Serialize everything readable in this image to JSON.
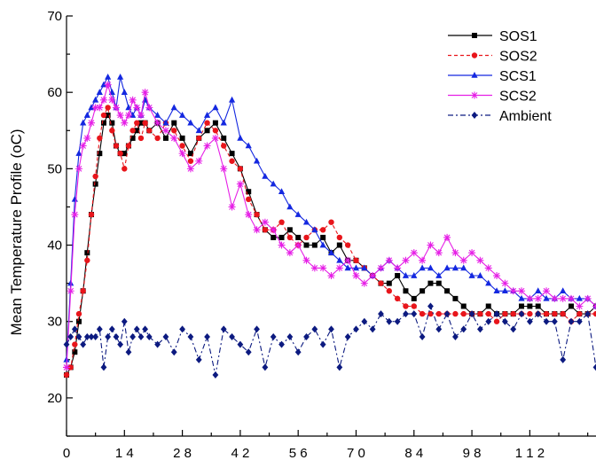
{
  "chart_data": {
    "type": "line",
    "title": "",
    "ylabel": "Mean Temperature Profile (oC)",
    "xlabel": "",
    "ylim": [
      15,
      70
    ],
    "xlim": [
      0,
      128
    ],
    "y_ticks": [
      20,
      30,
      40,
      50,
      60,
      70
    ],
    "y_tick_labels": [
      "20",
      "30",
      "40",
      "50",
      "60",
      "70"
    ],
    "x_ticks": [
      0,
      14,
      28,
      42,
      56,
      70,
      84,
      98,
      112
    ],
    "x_tick_labels": [
      "0",
      "1 4",
      "2 8",
      "4 2",
      "5 6",
      "7 0",
      "8 4",
      "9 8",
      "1 1 2"
    ],
    "legend_position": "top-right",
    "grid": false,
    "series": [
      {
        "name": "SOS1",
        "color": "#000000",
        "marker": "square",
        "dash": "solid",
        "x": [
          0,
          1,
          2,
          3,
          4,
          5,
          6,
          7,
          8,
          9,
          10,
          11,
          12,
          13,
          14,
          15,
          16,
          17,
          18,
          19,
          20,
          22,
          24,
          26,
          28,
          30,
          32,
          34,
          36,
          38,
          40,
          42,
          44,
          46,
          48,
          50,
          52,
          54,
          56,
          58,
          60,
          62,
          64,
          66,
          68,
          70,
          72,
          74,
          76,
          78,
          80,
          82,
          84,
          86,
          88,
          90,
          92,
          94,
          96,
          98,
          100,
          102,
          104,
          106,
          108,
          110,
          112,
          114,
          116,
          118,
          120,
          122,
          124,
          126,
          128
        ],
        "values": [
          23,
          24,
          26,
          30,
          34,
          39,
          44,
          48,
          52,
          56,
          57,
          56,
          53,
          52,
          52,
          53,
          54,
          55,
          56,
          56,
          55,
          56,
          54,
          56,
          54,
          52,
          54,
          55,
          56,
          54,
          52,
          50,
          47,
          44,
          42,
          41,
          41,
          42,
          41,
          40,
          40,
          41,
          39,
          40,
          38,
          38,
          37,
          36,
          35,
          35,
          36,
          34,
          33,
          34,
          35,
          35,
          34,
          33,
          32,
          31,
          31,
          32,
          31,
          31,
          31,
          32,
          32,
          32,
          31,
          31,
          31,
          32,
          31,
          31,
          32
        ]
      },
      {
        "name": "SOS2",
        "color": "#e8151b",
        "marker": "circle",
        "dash": "dashed",
        "x": [
          0,
          1,
          2,
          3,
          4,
          5,
          6,
          7,
          8,
          9,
          10,
          11,
          12,
          13,
          14,
          15,
          16,
          17,
          18,
          19,
          20,
          22,
          24,
          26,
          28,
          30,
          32,
          34,
          36,
          38,
          40,
          42,
          44,
          46,
          48,
          50,
          52,
          54,
          56,
          58,
          60,
          62,
          64,
          66,
          68,
          70,
          72,
          74,
          76,
          78,
          80,
          82,
          84,
          86,
          88,
          90,
          92,
          94,
          96,
          98,
          100,
          102,
          104,
          106,
          108,
          110,
          112,
          114,
          116,
          118,
          120,
          122,
          124,
          126,
          128
        ],
        "values": [
          23,
          24,
          27,
          31,
          34,
          38,
          44,
          49,
          54,
          57,
          58,
          55,
          53,
          52,
          50,
          53,
          55,
          56,
          54,
          56,
          55,
          54,
          56,
          55,
          53,
          51,
          54,
          56,
          55,
          53,
          51,
          50,
          46,
          44,
          42,
          42,
          43,
          41,
          40,
          41,
          42,
          42,
          43,
          41,
          40,
          38,
          37,
          36,
          35,
          34,
          33,
          32,
          32,
          31,
          31,
          31,
          31,
          31,
          31,
          31,
          31,
          31,
          30,
          31,
          31,
          31,
          31,
          31,
          31,
          31,
          31,
          30,
          31,
          31,
          31
        ]
      },
      {
        "name": "SCS1",
        "color": "#1428e0",
        "marker": "triangle",
        "dash": "solid",
        "x": [
          0,
          1,
          2,
          3,
          4,
          5,
          6,
          7,
          8,
          9,
          10,
          11,
          12,
          13,
          14,
          15,
          16,
          17,
          18,
          19,
          20,
          22,
          24,
          26,
          28,
          30,
          32,
          34,
          36,
          38,
          40,
          42,
          44,
          46,
          48,
          50,
          52,
          54,
          56,
          58,
          60,
          62,
          64,
          66,
          68,
          70,
          72,
          74,
          76,
          78,
          80,
          82,
          84,
          86,
          88,
          90,
          92,
          94,
          96,
          98,
          100,
          102,
          104,
          106,
          108,
          110,
          112,
          114,
          116,
          118,
          120,
          122,
          124,
          126,
          128
        ],
        "values": [
          25,
          35,
          46,
          52,
          56,
          57,
          58,
          59,
          60,
          61,
          62,
          60,
          58,
          62,
          60,
          58,
          57,
          58,
          57,
          59,
          58,
          57,
          56,
          58,
          57,
          56,
          55,
          57,
          58,
          56,
          59,
          54,
          53,
          51,
          49,
          48,
          47,
          45,
          44,
          43,
          42,
          40,
          39,
          38,
          37,
          37,
          37,
          36,
          37,
          38,
          37,
          36,
          36,
          37,
          37,
          36,
          37,
          37,
          37,
          36,
          36,
          35,
          34,
          34,
          34,
          33,
          33,
          34,
          33,
          33,
          34,
          33,
          33,
          33,
          32
        ]
      },
      {
        "name": "SCS2",
        "color": "#e61fe6",
        "marker": "star",
        "dash": "solid",
        "x": [
          0,
          1,
          2,
          3,
          4,
          5,
          6,
          7,
          8,
          9,
          10,
          11,
          12,
          13,
          14,
          15,
          16,
          17,
          18,
          19,
          20,
          22,
          24,
          26,
          28,
          30,
          32,
          34,
          36,
          38,
          40,
          42,
          44,
          46,
          48,
          50,
          52,
          54,
          56,
          58,
          60,
          62,
          64,
          66,
          68,
          70,
          72,
          74,
          76,
          78,
          80,
          82,
          84,
          86,
          88,
          90,
          92,
          94,
          96,
          98,
          100,
          102,
          104,
          106,
          108,
          110,
          112,
          114,
          116,
          118,
          120,
          122,
          124,
          126,
          128
        ],
        "values": [
          24,
          34,
          44,
          50,
          53,
          54,
          56,
          58,
          58,
          59,
          61,
          59,
          58,
          57,
          56,
          57,
          59,
          58,
          57,
          60,
          58,
          56,
          55,
          54,
          52,
          50,
          51,
          53,
          54,
          50,
          45,
          48,
          44,
          42,
          43,
          42,
          40,
          39,
          40,
          38,
          37,
          37,
          36,
          37,
          38,
          36,
          35,
          36,
          37,
          38,
          37,
          38,
          39,
          38,
          40,
          39,
          41,
          39,
          38,
          39,
          38,
          37,
          36,
          35,
          34,
          34,
          33,
          33,
          34,
          33,
          33,
          33,
          32,
          33,
          32
        ]
      },
      {
        "name": "Ambient",
        "color": "#0c1a80",
        "marker": "diamond",
        "dash": "dashdot",
        "x": [
          0,
          1,
          2,
          3,
          4,
          5,
          6,
          7,
          8,
          9,
          10,
          11,
          12,
          13,
          14,
          15,
          16,
          17,
          18,
          19,
          20,
          22,
          24,
          26,
          28,
          30,
          32,
          34,
          36,
          38,
          40,
          42,
          44,
          46,
          48,
          50,
          52,
          54,
          56,
          58,
          60,
          62,
          64,
          66,
          68,
          70,
          72,
          74,
          76,
          78,
          80,
          82,
          84,
          86,
          88,
          90,
          92,
          94,
          96,
          98,
          100,
          102,
          104,
          106,
          108,
          110,
          112,
          114,
          116,
          118,
          120,
          122,
          124,
          126,
          128
        ],
        "values": [
          27,
          28,
          29,
          28,
          27,
          28,
          28,
          28,
          29,
          24,
          28,
          29,
          28,
          27,
          30,
          26,
          28,
          29,
          28,
          29,
          28,
          27,
          28,
          26,
          29,
          28,
          25,
          28,
          23,
          29,
          28,
          27,
          26,
          29,
          24,
          28,
          27,
          28,
          26,
          28,
          29,
          27,
          29,
          24,
          28,
          29,
          30,
          29,
          31,
          30,
          30,
          31,
          31,
          28,
          32,
          29,
          31,
          28,
          29,
          31,
          29,
          30,
          31,
          30,
          29,
          31,
          30,
          31,
          30,
          30,
          25,
          30,
          30,
          31,
          24
        ]
      }
    ]
  }
}
